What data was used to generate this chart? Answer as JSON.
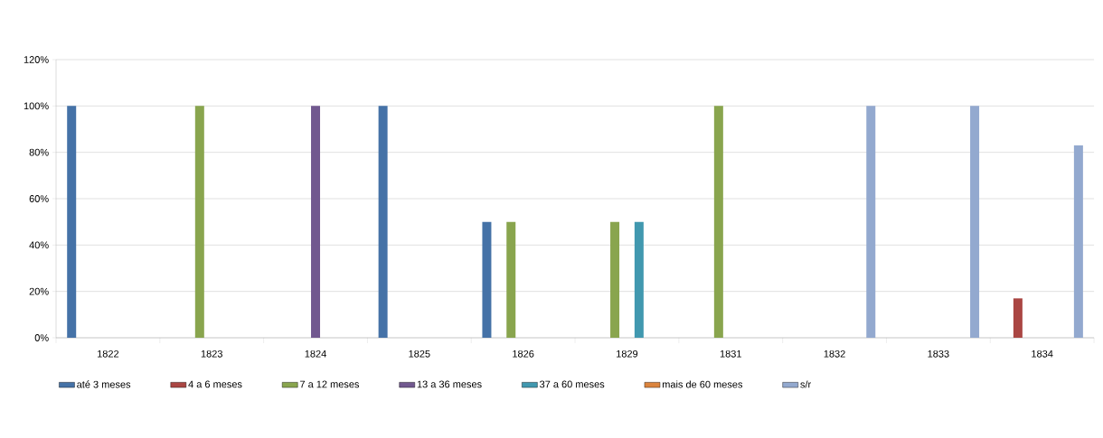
{
  "chart_data": {
    "type": "bar",
    "categories": [
      "1822",
      "1823",
      "1824",
      "1825",
      "1826",
      "1829",
      "1831",
      "1832",
      "1833",
      "1834"
    ],
    "series": [
      {
        "name": "até 3 meses",
        "color": "#4572a7",
        "values": [
          100,
          null,
          null,
          100,
          50,
          null,
          null,
          null,
          null,
          null
        ]
      },
      {
        "name": "4  a 6 meses",
        "color": "#aa4643",
        "values": [
          null,
          null,
          null,
          null,
          null,
          null,
          null,
          null,
          null,
          17
        ]
      },
      {
        "name": "7 a 12 meses",
        "color": "#89a54e",
        "values": [
          null,
          100,
          null,
          null,
          50,
          50,
          100,
          null,
          null,
          null
        ]
      },
      {
        "name": "13 a 36 meses",
        "color": "#71588f",
        "values": [
          null,
          null,
          100,
          null,
          null,
          null,
          null,
          null,
          null,
          null
        ]
      },
      {
        "name": "37 a 60 meses",
        "color": "#4198af",
        "values": [
          null,
          null,
          null,
          null,
          null,
          50,
          null,
          null,
          null,
          null
        ]
      },
      {
        "name": "mais de 60 meses",
        "color": "#db843d",
        "values": [
          null,
          null,
          null,
          null,
          null,
          null,
          null,
          null,
          null,
          null
        ]
      },
      {
        "name": "s/r",
        "color": "#93a9cf",
        "values": [
          null,
          null,
          null,
          null,
          null,
          null,
          null,
          100,
          100,
          83
        ]
      }
    ],
    "ylim": [
      0,
      120
    ],
    "yticks": [
      {
        "value": 0,
        "label": "0%"
      },
      {
        "value": 20,
        "label": "20%"
      },
      {
        "value": 40,
        "label": "40%"
      },
      {
        "value": 60,
        "label": "60%"
      },
      {
        "value": 80,
        "label": "80%"
      },
      {
        "value": 100,
        "label": "100%"
      },
      {
        "value": 120,
        "label": "120%"
      }
    ],
    "grid": "y",
    "legend": "bottom"
  }
}
